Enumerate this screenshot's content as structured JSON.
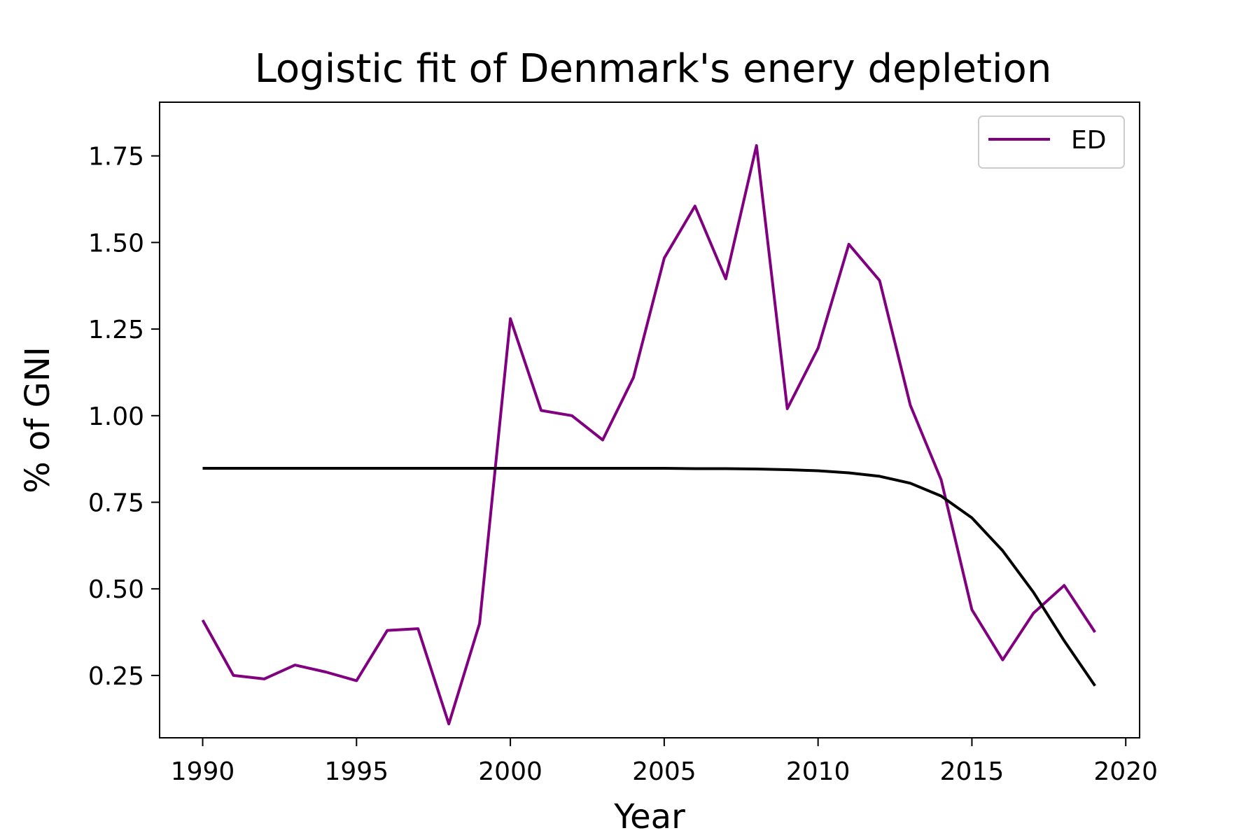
{
  "chart_data": {
    "type": "line",
    "title": "Logistic fit of Denmark's enery depletion",
    "xlabel": "Year",
    "ylabel": "% of GNI",
    "xlim": [
      1988.6,
      2020.45
    ],
    "ylim": [
      0.07,
      1.905
    ],
    "x_ticks": [
      1990,
      1995,
      2000,
      2005,
      2010,
      2015,
      2020
    ],
    "x_tick_labels": [
      "1990",
      "1995",
      "2000",
      "2005",
      "2010",
      "2015",
      "2020"
    ],
    "y_ticks": [
      0.25,
      0.5,
      0.75,
      1.0,
      1.25,
      1.5,
      1.75
    ],
    "y_tick_labels": [
      "0.25",
      "0.50",
      "0.75",
      "1.00",
      "1.25",
      "1.50",
      "1.75"
    ],
    "grid": false,
    "legend_position": "top-right",
    "x": [
      1990,
      1991,
      1992,
      1993,
      1994,
      1995,
      1996,
      1997,
      1998,
      1999,
      2000,
      2001,
      2002,
      2003,
      2004,
      2005,
      2006,
      2007,
      2008,
      2009,
      2010,
      2011,
      2012,
      2013,
      2014,
      2015,
      2016,
      2017,
      2018,
      2019
    ],
    "series": [
      {
        "name": "ED",
        "color": "#800080",
        "values": [
          0.41,
          0.25,
          0.24,
          0.28,
          0.26,
          0.235,
          0.38,
          0.385,
          0.11,
          0.4,
          1.28,
          1.015,
          1.0,
          0.93,
          1.11,
          1.455,
          1.605,
          1.395,
          1.78,
          1.02,
          1.195,
          1.495,
          1.39,
          1.03,
          0.815,
          0.44,
          0.295,
          0.43,
          0.51,
          0.375
        ]
      },
      {
        "color": "#000000",
        "values": [
          0.848,
          0.848,
          0.848,
          0.848,
          0.848,
          0.848,
          0.848,
          0.848,
          0.848,
          0.848,
          0.848,
          0.848,
          0.848,
          0.848,
          0.848,
          0.848,
          0.847,
          0.847,
          0.846,
          0.844,
          0.841,
          0.835,
          0.825,
          0.805,
          0.768,
          0.705,
          0.61,
          0.49,
          0.35,
          0.22
        ]
      }
    ]
  }
}
